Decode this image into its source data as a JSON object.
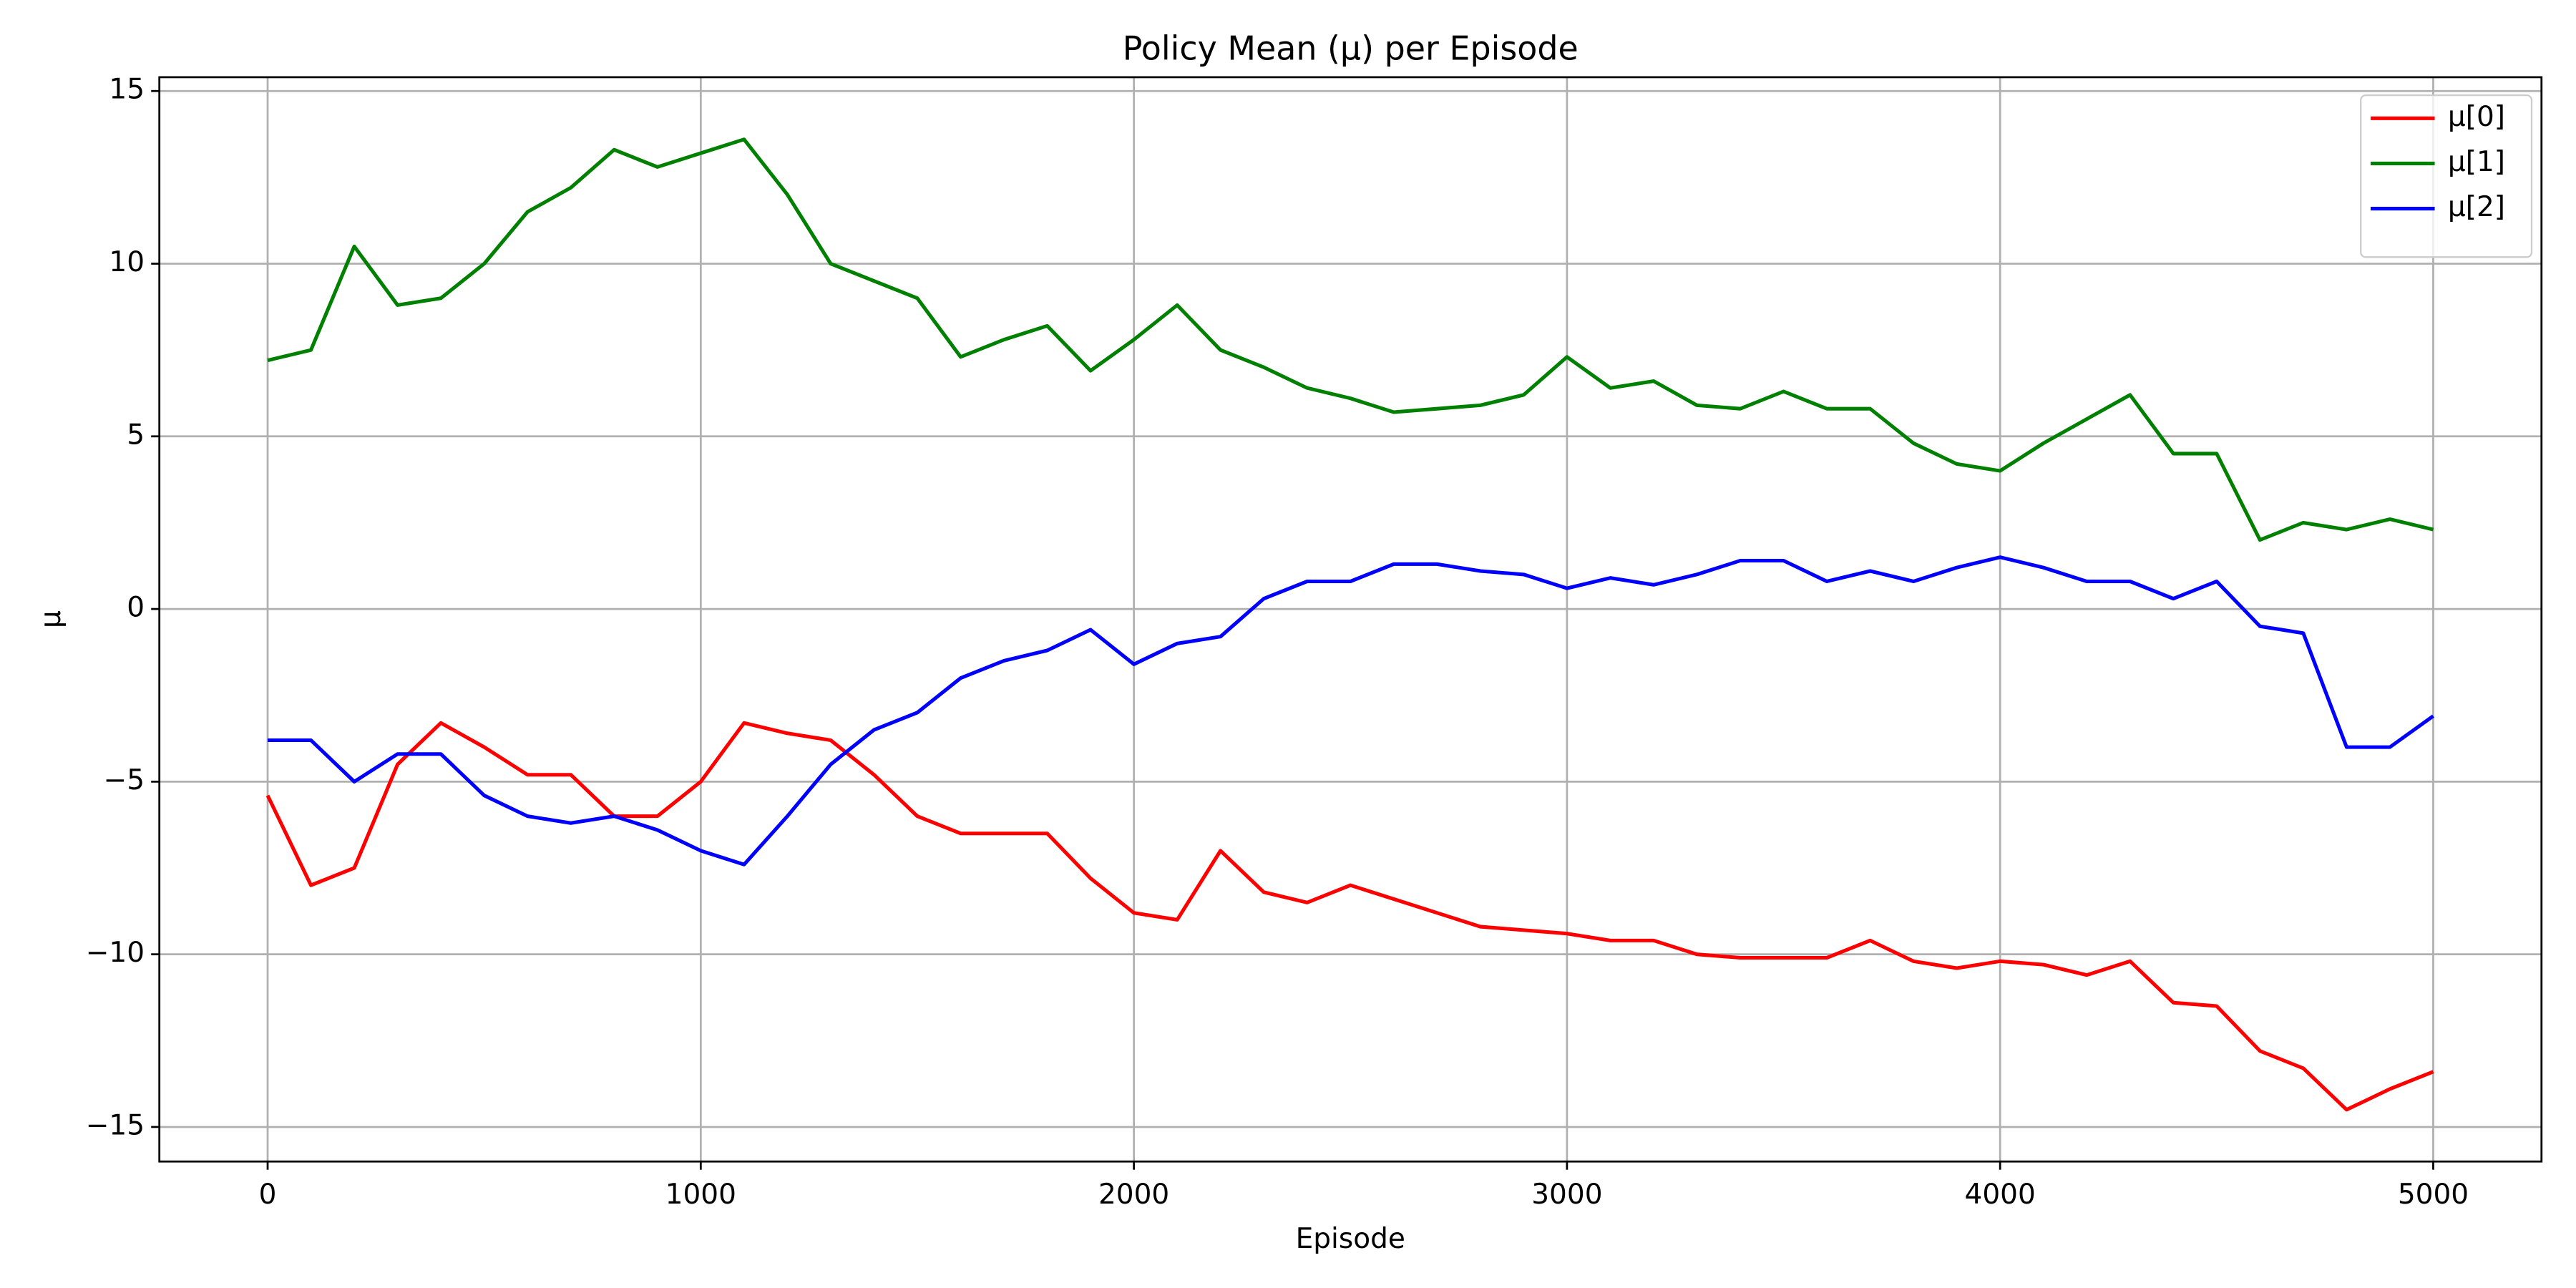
{
  "chart_data": {
    "type": "line",
    "title": "Policy Mean (μ) per Episode",
    "x_label": "Episode",
    "y_label": "μ",
    "x": [
      0,
      100,
      200,
      300,
      400,
      500,
      600,
      700,
      800,
      900,
      1000,
      1100,
      1200,
      1300,
      1400,
      1500,
      1600,
      1700,
      1800,
      1900,
      2000,
      2100,
      2200,
      2300,
      2400,
      2500,
      2600,
      2700,
      2800,
      2900,
      3000,
      3100,
      3200,
      3300,
      3400,
      3500,
      3600,
      3700,
      3800,
      3900,
      4000,
      4100,
      4200,
      4300,
      4400,
      4500,
      4600,
      4700,
      4800,
      4900,
      5000
    ],
    "series": [
      {
        "name": "μ[0]",
        "color": "#ff0000",
        "values": [
          -5.4,
          -8.0,
          -7.5,
          -4.5,
          -3.3,
          -4.0,
          -4.8,
          -4.8,
          -6.0,
          -6.0,
          -5.0,
          -3.3,
          -3.6,
          -3.8,
          -4.8,
          -6.0,
          -6.5,
          -6.5,
          -6.5,
          -7.8,
          -8.8,
          -9.0,
          -7.0,
          -8.2,
          -8.5,
          -8.0,
          -8.4,
          -8.8,
          -9.2,
          -9.3,
          -9.4,
          -9.6,
          -9.6,
          -10.0,
          -10.1,
          -10.1,
          -10.1,
          -9.6,
          -10.2,
          -10.4,
          -10.2,
          -10.3,
          -10.6,
          -10.2,
          -11.4,
          -11.5,
          -12.8,
          -13.3,
          -14.5,
          -13.9,
          -13.4
        ]
      },
      {
        "name": "μ[1]",
        "color": "#008000",
        "values": [
          7.2,
          7.5,
          10.5,
          8.8,
          9.0,
          10.0,
          11.5,
          12.2,
          13.3,
          12.8,
          13.2,
          13.6,
          12.0,
          10.0,
          9.5,
          9.0,
          7.3,
          7.8,
          8.2,
          6.9,
          7.8,
          8.8,
          7.5,
          7.0,
          6.4,
          6.1,
          5.7,
          5.8,
          5.9,
          6.2,
          7.3,
          6.4,
          6.6,
          5.9,
          5.8,
          6.3,
          5.8,
          5.8,
          4.8,
          4.2,
          4.0,
          4.8,
          5.5,
          6.2,
          4.5,
          4.5,
          2.0,
          2.5,
          2.3,
          2.6,
          2.3
        ]
      },
      {
        "name": "μ[2]",
        "color": "#0000ff",
        "values": [
          -3.8,
          -3.8,
          -5.0,
          -4.2,
          -4.2,
          -5.4,
          -6.0,
          -6.2,
          -6.0,
          -6.4,
          -7.0,
          -7.4,
          -6.0,
          -4.5,
          -3.5,
          -3.0,
          -2.0,
          -1.5,
          -1.2,
          -0.6,
          -1.6,
          -1.0,
          -0.8,
          0.3,
          0.8,
          0.8,
          1.3,
          1.3,
          1.1,
          1.0,
          0.6,
          0.9,
          0.7,
          1.0,
          1.4,
          1.4,
          0.8,
          1.1,
          0.8,
          1.2,
          1.5,
          1.2,
          0.8,
          0.8,
          0.3,
          0.8,
          -0.5,
          -0.7,
          -4.0,
          -4.0,
          -3.1
        ]
      }
    ],
    "xlim": [
      -250,
      5250
    ],
    "ylim": [
      -16,
      15.4
    ],
    "xticks": [
      0,
      1000,
      2000,
      3000,
      4000,
      5000
    ],
    "yticks": [
      {
        "value": -15,
        "label": "−15"
      },
      {
        "value": -10,
        "label": "−10"
      },
      {
        "value": -5,
        "label": "−5"
      },
      0,
      5,
      10,
      15
    ],
    "grid": true,
    "legend": "upper right"
  }
}
